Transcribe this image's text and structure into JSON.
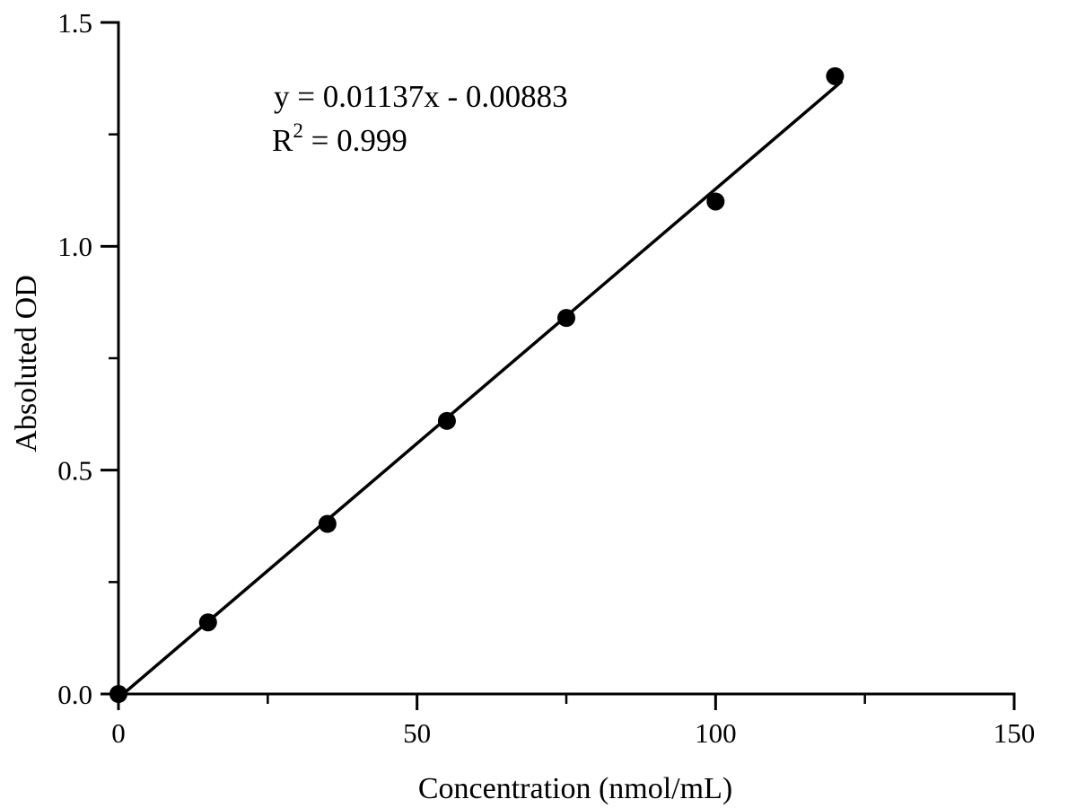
{
  "figure": {
    "background": "#ffffff",
    "ink_color": "#000000"
  },
  "chart_data": {
    "type": "scatter",
    "title": "",
    "xlabel": "Concentration (nmol/mL)",
    "ylabel": "Absoluted OD",
    "xlim": [
      0,
      150
    ],
    "ylim": [
      0,
      1.5
    ],
    "grid": false,
    "legend": "none",
    "x_ticks": {
      "major": [
        0,
        50,
        100,
        150
      ],
      "major_labels": [
        "0",
        "50",
        "100",
        "150"
      ],
      "minor": [
        25,
        75,
        125
      ]
    },
    "y_ticks": {
      "major": [
        0,
        0.5,
        1.0,
        1.5
      ],
      "major_labels": [
        "0.0",
        "0.5",
        "1.0",
        "1.5"
      ],
      "minor": [
        0.25,
        0.75,
        1.25
      ]
    },
    "series": [
      {
        "name": "standard-points",
        "marker": "filled-circle",
        "color": "#000000",
        "points": [
          {
            "x": 0,
            "y": 0.0
          },
          {
            "x": 15,
            "y": 0.16
          },
          {
            "x": 35,
            "y": 0.38
          },
          {
            "x": 55,
            "y": 0.61
          },
          {
            "x": 75,
            "y": 0.84
          },
          {
            "x": 100,
            "y": 1.1
          },
          {
            "x": 120,
            "y": 1.38
          }
        ]
      }
    ],
    "fit_line": {
      "slope": 0.01137,
      "intercept": -0.00883,
      "x_start": 0.78,
      "x_end": 121,
      "color": "#000000"
    },
    "annotation": {
      "equation": "y = 0.01137x - 0.00883",
      "r2_prefix": "R",
      "r2_sup": "2",
      "r2_suffix": " = 0.999"
    }
  }
}
